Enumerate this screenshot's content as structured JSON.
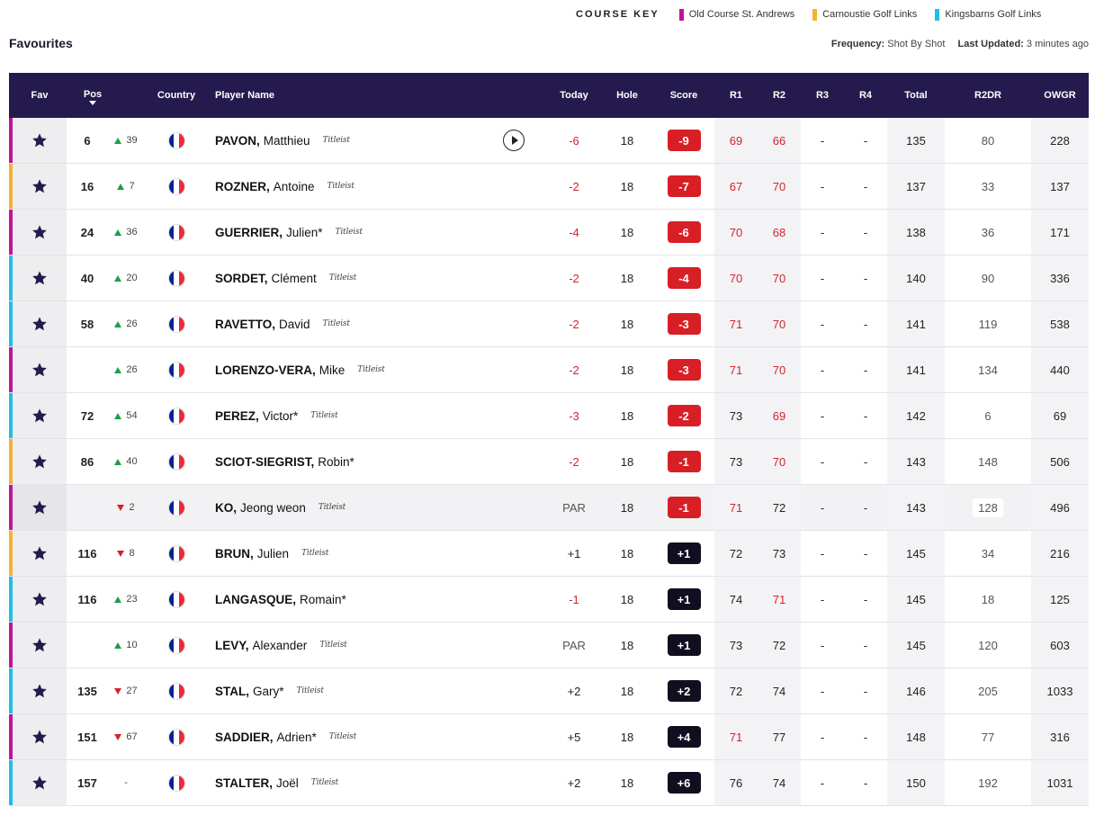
{
  "course_key": {
    "title": "COURSE KEY",
    "items": [
      {
        "label": "Old Course St. Andrews",
        "color": "#c0139a"
      },
      {
        "label": "Carnoustie Golf Links",
        "color": "#f2b233"
      },
      {
        "label": "Kingsbarns Golf Links",
        "color": "#1fbfe6"
      }
    ]
  },
  "page_title": "Favourites",
  "meta": {
    "frequency_label": "Frequency:",
    "frequency_value": "Shot By Shot",
    "updated_label": "Last Updated:",
    "updated_value": "3 minutes ago"
  },
  "columns": {
    "fav": "Fav",
    "pos": "Pos",
    "country": "Country",
    "player": "Player Name",
    "today": "Today",
    "hole": "Hole",
    "score": "Score",
    "r1": "R1",
    "r2": "R2",
    "r3": "R3",
    "r4": "R4",
    "total": "Total",
    "r2dr": "R2DR",
    "owgr": "OWGR"
  },
  "colors": {
    "header_bg": "#241a4d",
    "up": "#1f9d45",
    "down": "#d1242c",
    "under_par": "#d81f26",
    "over_par": "#0f0f1f",
    "star": "#241a4d",
    "flag_blue": "#002395",
    "flag_white": "#ffffff",
    "flag_red": "#ed2939"
  },
  "icons": {
    "favourite": "star-icon",
    "country": "france-flag-icon",
    "play": "play-icon",
    "sponsor": "titleist-logo"
  },
  "rows": [
    {
      "course": "old",
      "pos": "6",
      "move_dir": "up",
      "move": "39",
      "last": "PAVON,",
      "first": "Matthieu",
      "sponsor": "Titleist",
      "play": true,
      "today": "-6",
      "today_red": true,
      "hole": "18",
      "score": "-9",
      "score_red": true,
      "r1": "69",
      "r1_red": true,
      "r2": "66",
      "r2_red": true,
      "r3": "-",
      "r4": "-",
      "total": "135",
      "r2dr": "80",
      "owgr": "228"
    },
    {
      "course": "carnoustie",
      "pos": "16",
      "move_dir": "up",
      "move": "7",
      "last": "ROZNER,",
      "first": "Antoine",
      "sponsor": "Titleist",
      "today": "-2",
      "today_red": true,
      "hole": "18",
      "score": "-7",
      "score_red": true,
      "r1": "67",
      "r1_red": true,
      "r2": "70",
      "r2_red": true,
      "r3": "-",
      "r4": "-",
      "total": "137",
      "r2dr": "33",
      "owgr": "137"
    },
    {
      "course": "old",
      "pos": "24",
      "move_dir": "up",
      "move": "36",
      "last": "GUERRIER,",
      "first": "Julien*",
      "sponsor": "Titleist",
      "today": "-4",
      "today_red": true,
      "hole": "18",
      "score": "-6",
      "score_red": true,
      "r1": "70",
      "r1_red": true,
      "r2": "68",
      "r2_red": true,
      "r3": "-",
      "r4": "-",
      "total": "138",
      "r2dr": "36",
      "owgr": "171"
    },
    {
      "course": "kingsbarns",
      "pos": "40",
      "move_dir": "up",
      "move": "20",
      "last": "SORDET,",
      "first": "Clément",
      "sponsor": "Titleist",
      "today": "-2",
      "today_red": true,
      "hole": "18",
      "score": "-4",
      "score_red": true,
      "r1": "70",
      "r1_red": true,
      "r2": "70",
      "r2_red": true,
      "r3": "-",
      "r4": "-",
      "total": "140",
      "r2dr": "90",
      "owgr": "336"
    },
    {
      "course": "kingsbarns",
      "pos": "58",
      "move_dir": "up",
      "move": "26",
      "last": "RAVETTO,",
      "first": "David",
      "sponsor": "Titleist",
      "today": "-2",
      "today_red": true,
      "hole": "18",
      "score": "-3",
      "score_red": true,
      "r1": "71",
      "r1_red": true,
      "r2": "70",
      "r2_red": true,
      "r3": "-",
      "r4": "-",
      "total": "141",
      "r2dr": "119",
      "owgr": "538"
    },
    {
      "course": "old",
      "pos": "",
      "move_dir": "up",
      "move": "26",
      "last": "LORENZO-VERA,",
      "first": "Mike",
      "sponsor": "Titleist",
      "today": "-2",
      "today_red": true,
      "hole": "18",
      "score": "-3",
      "score_red": true,
      "r1": "71",
      "r1_red": true,
      "r2": "70",
      "r2_red": true,
      "r3": "-",
      "r4": "-",
      "total": "141",
      "r2dr": "134",
      "owgr": "440"
    },
    {
      "course": "kingsbarns",
      "pos": "72",
      "move_dir": "up",
      "move": "54",
      "last": "PEREZ,",
      "first": "Victor*",
      "sponsor": "Titleist",
      "today": "-3",
      "today_red": true,
      "hole": "18",
      "score": "-2",
      "score_red": true,
      "r1": "73",
      "r1_red": false,
      "r2": "69",
      "r2_red": true,
      "r3": "-",
      "r4": "-",
      "total": "142",
      "r2dr": "6",
      "owgr": "69"
    },
    {
      "course": "carnoustie",
      "pos": "86",
      "move_dir": "up",
      "move": "40",
      "last": "SCIOT-SIEGRIST,",
      "first": "Robin*",
      "sponsor": "",
      "today": "-2",
      "today_red": true,
      "hole": "18",
      "score": "-1",
      "score_red": true,
      "r1": "73",
      "r1_red": false,
      "r2": "70",
      "r2_red": true,
      "r3": "-",
      "r4": "-",
      "total": "143",
      "r2dr": "148",
      "owgr": "506"
    },
    {
      "course": "old",
      "pos": "",
      "move_dir": "down",
      "move": "2",
      "last": "KO,",
      "first": "Jeong weon",
      "sponsor": "Titleist",
      "highlight": true,
      "today": "PAR",
      "today_red": false,
      "hole": "18",
      "score": "-1",
      "score_red": true,
      "r1": "71",
      "r1_red": true,
      "r2": "72",
      "r2_red": false,
      "r3": "-",
      "r4": "-",
      "total": "143",
      "r2dr": "128",
      "r2dr_box": true,
      "owgr": "496"
    },
    {
      "course": "carnoustie",
      "pos": "116",
      "move_dir": "down",
      "move": "8",
      "last": "BRUN,",
      "first": "Julien",
      "sponsor": "Titleist",
      "today": "+1",
      "today_red": false,
      "hole": "18",
      "score": "+1",
      "score_red": false,
      "r1": "72",
      "r1_red": false,
      "r2": "73",
      "r2_red": false,
      "r3": "-",
      "r4": "-",
      "total": "145",
      "r2dr": "34",
      "owgr": "216"
    },
    {
      "course": "kingsbarns",
      "pos": "116",
      "move_dir": "up",
      "move": "23",
      "last": "LANGASQUE,",
      "first": "Romain*",
      "sponsor": "",
      "today": "-1",
      "today_red": true,
      "hole": "18",
      "score": "+1",
      "score_red": false,
      "r1": "74",
      "r1_red": false,
      "r2": "71",
      "r2_red": true,
      "r3": "-",
      "r4": "-",
      "total": "145",
      "r2dr": "18",
      "owgr": "125"
    },
    {
      "course": "old",
      "pos": "",
      "move_dir": "up",
      "move": "10",
      "last": "LEVY,",
      "first": "Alexander",
      "sponsor": "Titleist",
      "today": "PAR",
      "today_red": false,
      "hole": "18",
      "score": "+1",
      "score_red": false,
      "r1": "73",
      "r1_red": false,
      "r2": "72",
      "r2_red": false,
      "r3": "-",
      "r4": "-",
      "total": "145",
      "r2dr": "120",
      "owgr": "603"
    },
    {
      "course": "kingsbarns",
      "pos": "135",
      "move_dir": "down",
      "move": "27",
      "last": "STAL,",
      "first": "Gary*",
      "sponsor": "Titleist",
      "today": "+2",
      "today_red": false,
      "hole": "18",
      "score": "+2",
      "score_red": false,
      "r1": "72",
      "r1_red": false,
      "r2": "74",
      "r2_red": false,
      "r3": "-",
      "r4": "-",
      "total": "146",
      "r2dr": "205",
      "owgr": "1033"
    },
    {
      "course": "old",
      "pos": "151",
      "move_dir": "down",
      "move": "67",
      "last": "SADDIER,",
      "first": "Adrien*",
      "sponsor": "Titleist",
      "today": "+5",
      "today_red": false,
      "hole": "18",
      "score": "+4",
      "score_red": false,
      "r1": "71",
      "r1_red": true,
      "r2": "77",
      "r2_red": false,
      "r3": "-",
      "r4": "-",
      "total": "148",
      "r2dr": "77",
      "owgr": "316"
    },
    {
      "course": "kingsbarns",
      "pos": "157",
      "move_dir": "none",
      "move": "-",
      "last": "STALTER,",
      "first": "Joël",
      "sponsor": "Titleist",
      "today": "+2",
      "today_red": false,
      "hole": "18",
      "score": "+6",
      "score_red": false,
      "r1": "76",
      "r1_red": false,
      "r2": "74",
      "r2_red": false,
      "r3": "-",
      "r4": "-",
      "total": "150",
      "r2dr": "192",
      "owgr": "1031"
    }
  ]
}
